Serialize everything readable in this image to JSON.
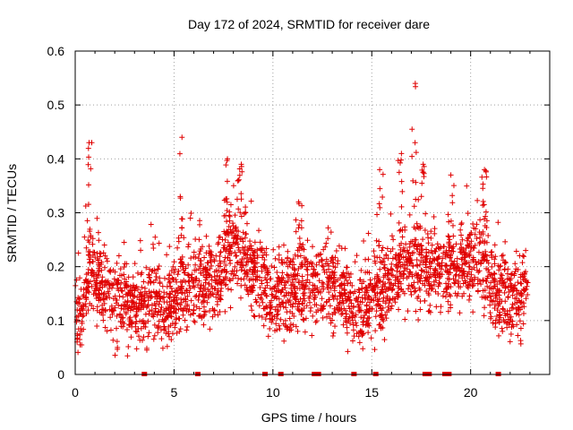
{
  "chart_data": {
    "type": "scatter",
    "title": "Day 172 of 2024, SRMTID for receiver dare",
    "xlabel": "GPS time / hours",
    "ylabel": "SRMTID / TECUs",
    "xlim": [
      0,
      24
    ],
    "ylim": [
      0,
      0.6
    ],
    "x_ticks": [
      0,
      5,
      10,
      15,
      20
    ],
    "x_tick_labels": [
      "0",
      "5",
      "10",
      "15",
      "20"
    ],
    "y_ticks": [
      0,
      0.1,
      0.2,
      0.3,
      0.4,
      0.5,
      0.6
    ],
    "y_tick_labels": [
      "0",
      "0.1",
      "0.2",
      "0.3",
      "0.4",
      "0.5",
      "0.6"
    ],
    "grid": true,
    "marker": "+",
    "color": "#e00000",
    "series": [
      {
        "name": "SRMTID",
        "x_range": [
          0,
          22.9
        ],
        "baseline_profile": [
          [
            0,
            0.11
          ],
          [
            0.5,
            0.12
          ],
          [
            0.7,
            0.2
          ],
          [
            1,
            0.18
          ],
          [
            1.5,
            0.15
          ],
          [
            2,
            0.13
          ],
          [
            2.5,
            0.14
          ],
          [
            3,
            0.12
          ],
          [
            4,
            0.14
          ],
          [
            5,
            0.13
          ],
          [
            5.5,
            0.17
          ],
          [
            6,
            0.16
          ],
          [
            7,
            0.17
          ],
          [
            7.5,
            0.2
          ],
          [
            8,
            0.24
          ],
          [
            8.5,
            0.22
          ],
          [
            9,
            0.19
          ],
          [
            9.5,
            0.17
          ],
          [
            10,
            0.14
          ],
          [
            10.5,
            0.16
          ],
          [
            11,
            0.15
          ],
          [
            11.5,
            0.16
          ],
          [
            12,
            0.17
          ],
          [
            13,
            0.16
          ],
          [
            13.5,
            0.15
          ],
          [
            14,
            0.12
          ],
          [
            14.5,
            0.12
          ],
          [
            15,
            0.14
          ],
          [
            15.5,
            0.15
          ],
          [
            16,
            0.17
          ],
          [
            16.5,
            0.2
          ],
          [
            17,
            0.2
          ],
          [
            17.5,
            0.18
          ],
          [
            18,
            0.19
          ],
          [
            18.5,
            0.2
          ],
          [
            19,
            0.19
          ],
          [
            19.5,
            0.2
          ],
          [
            20,
            0.22
          ],
          [
            20.5,
            0.21
          ],
          [
            21,
            0.17
          ],
          [
            21.5,
            0.15
          ],
          [
            22,
            0.13
          ],
          [
            22.9,
            0.15
          ]
        ],
        "peaks": [
          {
            "x": 0.7,
            "y": 0.43
          },
          {
            "x": 5.4,
            "y": 0.44
          },
          {
            "x": 7.7,
            "y": 0.4
          },
          {
            "x": 8.4,
            "y": 0.39
          },
          {
            "x": 11.3,
            "y": 0.32
          },
          {
            "x": 15.4,
            "y": 0.38
          },
          {
            "x": 16.5,
            "y": 0.41
          },
          {
            "x": 17.2,
            "y": 0.54
          },
          {
            "x": 17.6,
            "y": 0.39
          },
          {
            "x": 19.0,
            "y": 0.37
          },
          {
            "x": 20.7,
            "y": 0.38
          }
        ],
        "points_count": 2600
      }
    ],
    "zero_markers_x": [
      3.5,
      6.2,
      9.6,
      10.4,
      12.1,
      12.3,
      14.1,
      15.2,
      17.7,
      17.9,
      18.7,
      18.9,
      21.4
    ]
  }
}
